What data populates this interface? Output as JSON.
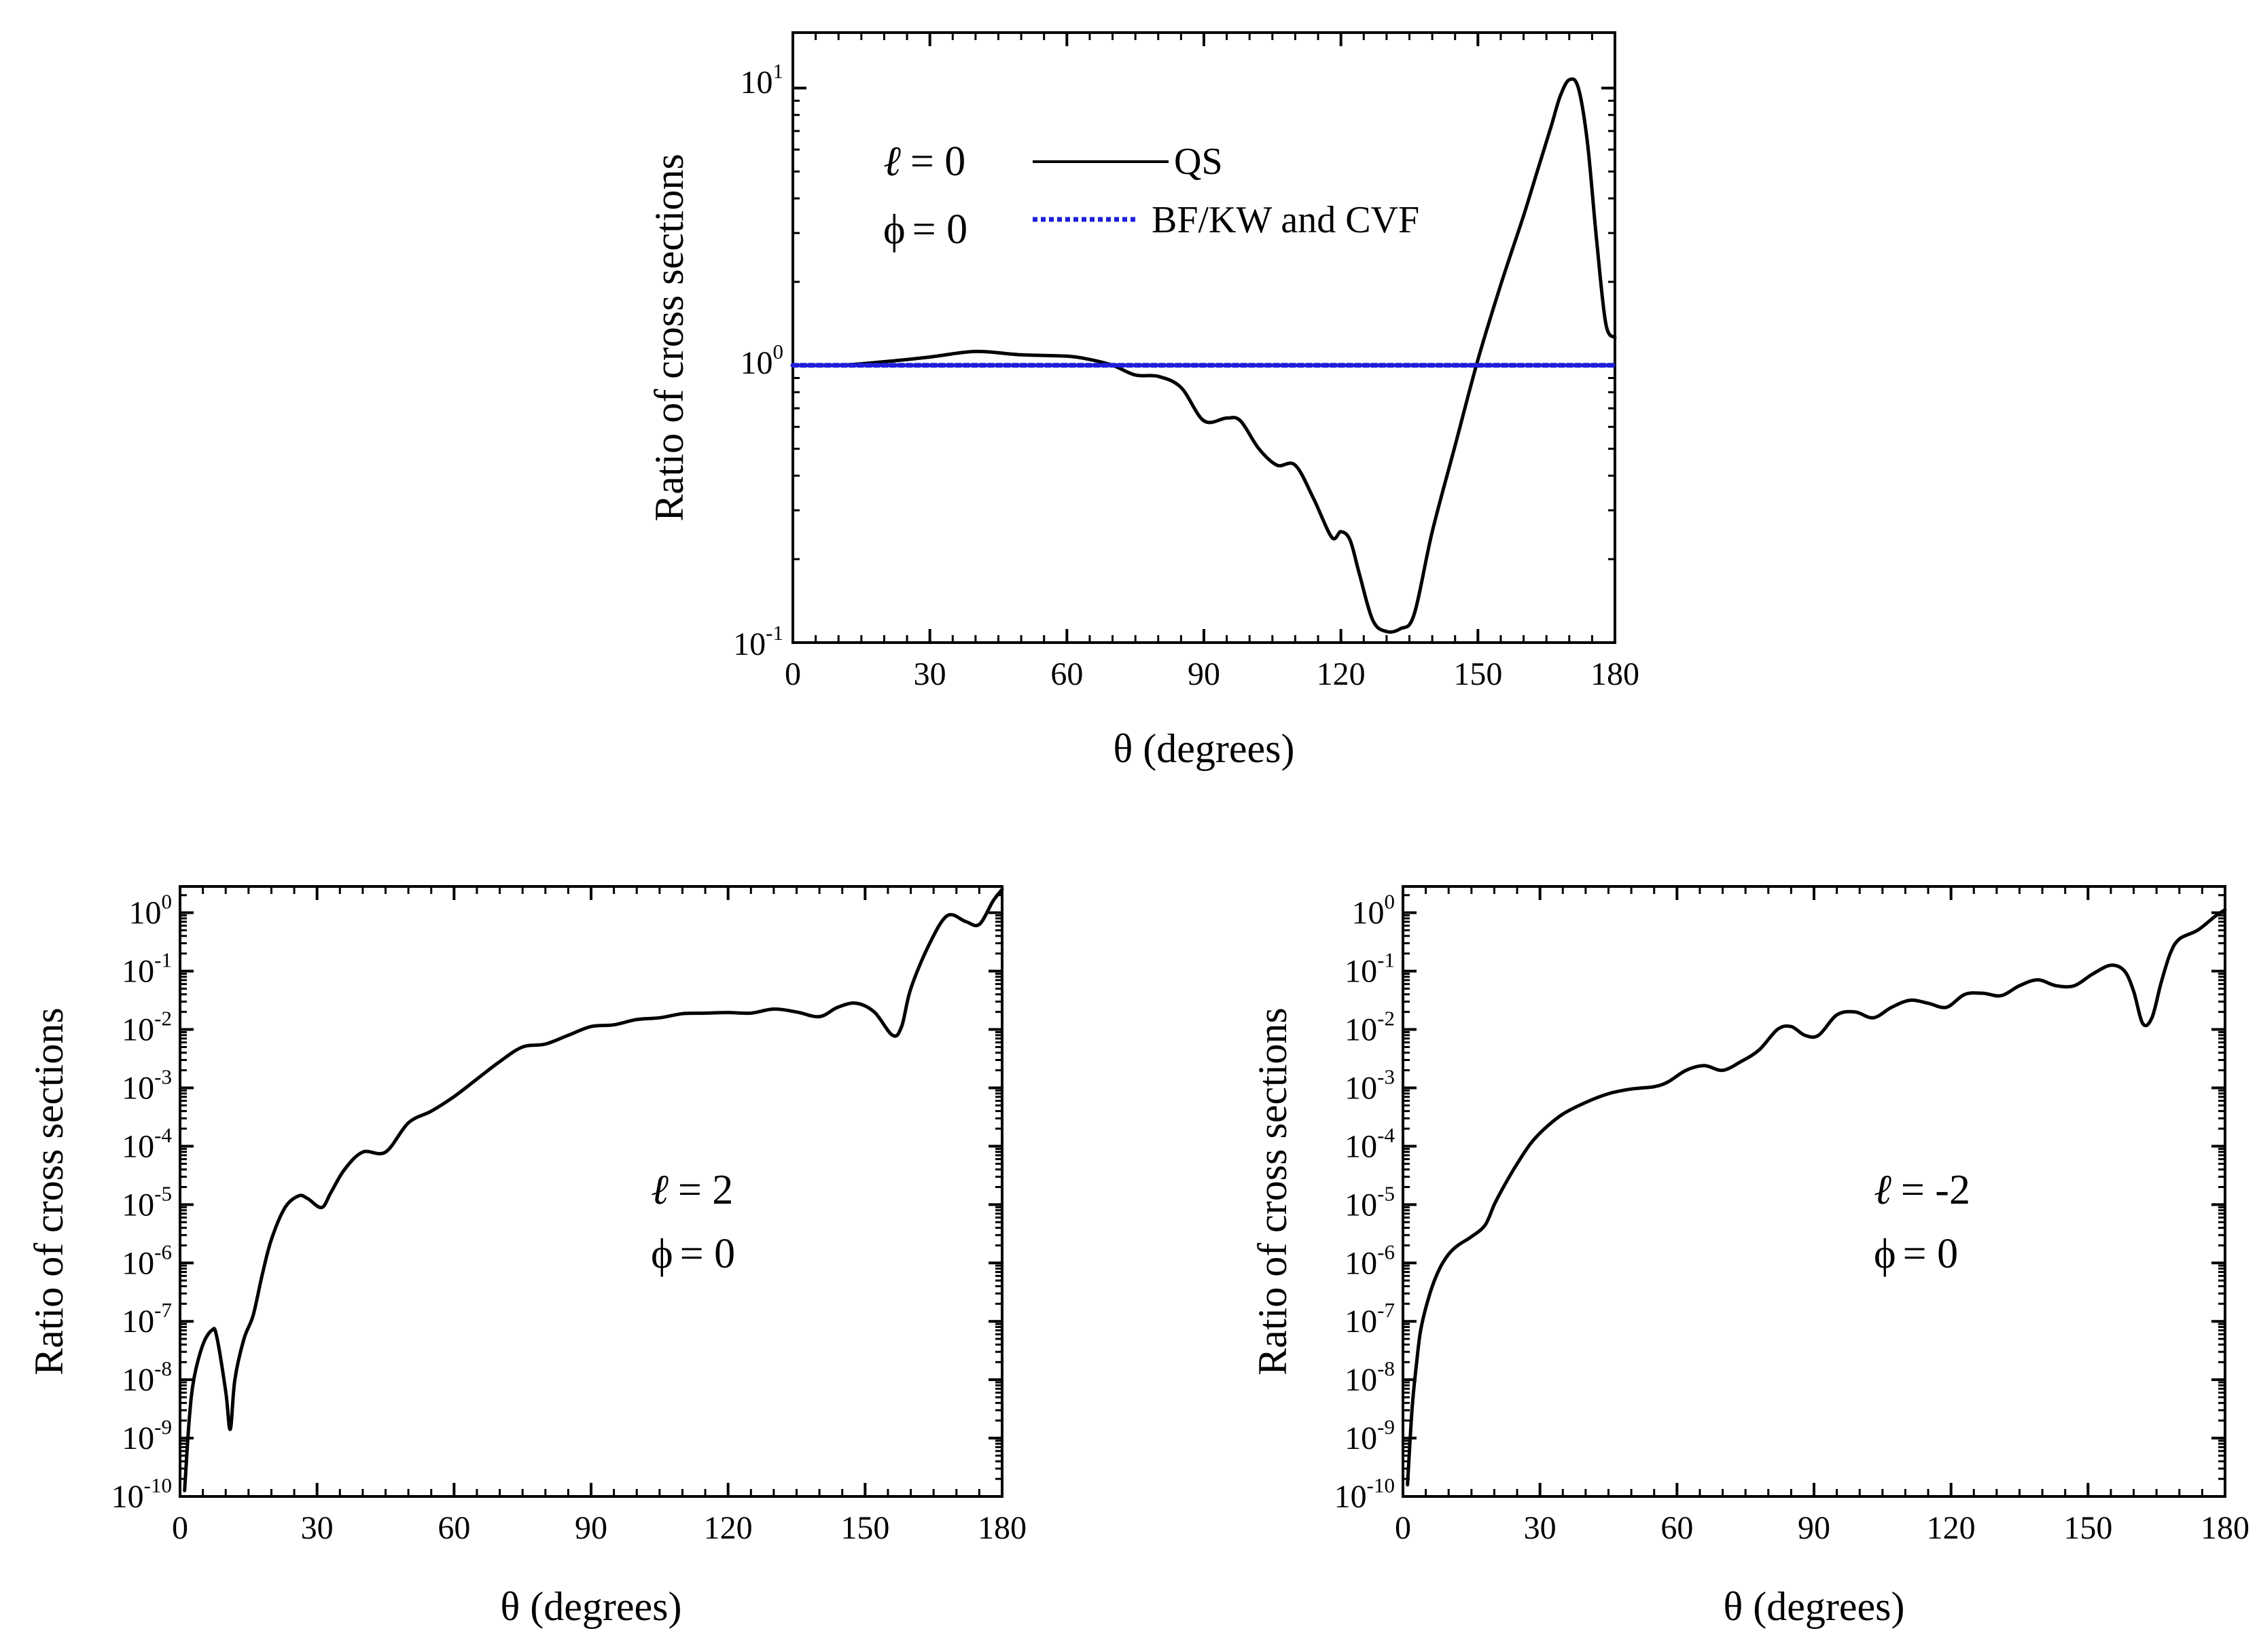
{
  "colors": {
    "qs_line": "#000000",
    "reference_line": "#1f1fd8",
    "axes": "#000000"
  },
  "chart_data": [
    {
      "type": "line",
      "id": "top",
      "xlabel": "θ (degrees)",
      "ylabel": "Ratio of cross sections",
      "xlim": [
        0,
        180
      ],
      "ylim_log10": [
        -1,
        1.2
      ],
      "yscale": "log",
      "x_ticks": [
        0,
        30,
        60,
        90,
        120,
        150,
        180
      ],
      "y_ticks": [
        {
          "base": "10",
          "exp": "1",
          "log": 1
        },
        {
          "base": "10",
          "exp": "0",
          "log": 0
        },
        {
          "base": "10",
          "exp": "-1",
          "log": -1
        }
      ],
      "annotations": [
        {
          "id": "ell",
          "symbol": "ℓ",
          "text": "= 0"
        },
        {
          "id": "phi",
          "symbol": "ϕ",
          "text": "= 0"
        }
      ],
      "legend": {
        "position": "top-left",
        "entries": [
          "QS",
          "BF/KW and CVF"
        ]
      },
      "series": [
        {
          "name": "QS",
          "style": "solid",
          "x": [
            0,
            10,
            20,
            30,
            40,
            50,
            60,
            65,
            70,
            75,
            80,
            85,
            90,
            95,
            98,
            102,
            106,
            110,
            114,
            118,
            120,
            122,
            124,
            127,
            130,
            133,
            136,
            140,
            145,
            150,
            155,
            160,
            163,
            166,
            168,
            170,
            172,
            174,
            176,
            178,
            180
          ],
          "log_y": [
            0,
            0.0,
            0.013,
            0.03,
            0.05,
            0.038,
            0.033,
            0.021,
            0.0,
            -0.035,
            -0.04,
            -0.08,
            -0.2,
            -0.19,
            -0.2,
            -0.3,
            -0.36,
            -0.36,
            -0.48,
            -0.62,
            -0.6,
            -0.63,
            -0.75,
            -0.92,
            -0.96,
            -0.95,
            -0.9,
            -0.6,
            -0.29,
            0.02,
            0.29,
            0.54,
            0.7,
            0.86,
            0.97,
            1.03,
            1.0,
            0.8,
            0.45,
            0.15,
            0.1
          ]
        },
        {
          "name": "BF/KW and CVF",
          "style": "dotted",
          "x": [
            0,
            180
          ],
          "log_y": [
            0,
            0
          ]
        }
      ]
    },
    {
      "type": "line",
      "id": "bottom-left",
      "xlabel": "θ (degrees)",
      "ylabel": "Ratio of cross sections",
      "xlim": [
        0,
        180
      ],
      "ylim_log10": [
        -10,
        0.45
      ],
      "yscale": "log",
      "x_ticks": [
        0,
        30,
        60,
        90,
        120,
        150,
        180
      ],
      "y_ticks": [
        {
          "base": "10",
          "exp": "0",
          "log": 0
        },
        {
          "base": "10",
          "exp": "-1",
          "log": -1
        },
        {
          "base": "10",
          "exp": "-2",
          "log": -2
        },
        {
          "base": "10",
          "exp": "-3",
          "log": -3
        },
        {
          "base": "10",
          "exp": "-4",
          "log": -4
        },
        {
          "base": "10",
          "exp": "-5",
          "log": -5
        },
        {
          "base": "10",
          "exp": "-6",
          "log": -6
        },
        {
          "base": "10",
          "exp": "-7",
          "log": -7
        },
        {
          "base": "10",
          "exp": "-8",
          "log": -8
        },
        {
          "base": "10",
          "exp": "-9",
          "log": -9
        },
        {
          "base": "10",
          "exp": "-10",
          "log": -10
        }
      ],
      "annotations": [
        {
          "id": "ell",
          "symbol": "ℓ",
          "text": "= 2"
        },
        {
          "id": "phi",
          "symbol": "ϕ",
          "text": "= 0"
        }
      ],
      "series": [
        {
          "name": "QS",
          "style": "solid",
          "x": [
            1,
            2,
            3,
            5,
            7,
            8,
            10,
            11,
            12,
            14,
            16,
            18,
            20,
            23,
            26,
            28,
            31,
            33,
            36,
            40,
            45,
            50,
            55,
            60,
            65,
            70,
            75,
            80,
            85,
            90,
            95,
            100,
            105,
            110,
            115,
            120,
            125,
            130,
            135,
            140,
            144,
            148,
            152,
            156,
            158,
            160,
            164,
            168,
            172,
            175,
            178,
            180
          ],
          "log_y": [
            -9.9,
            -8.7,
            -8.0,
            -7.4,
            -7.15,
            -7.25,
            -8.2,
            -8.85,
            -8.0,
            -7.3,
            -6.9,
            -6.2,
            -5.6,
            -5.05,
            -4.85,
            -4.9,
            -5.05,
            -4.8,
            -4.4,
            -4.1,
            -4.1,
            -3.6,
            -3.4,
            -3.15,
            -2.85,
            -2.55,
            -2.3,
            -2.25,
            -2.1,
            -1.95,
            -1.92,
            -1.83,
            -1.8,
            -1.73,
            -1.72,
            -1.71,
            -1.72,
            -1.65,
            -1.7,
            -1.78,
            -1.62,
            -1.55,
            -1.7,
            -2.1,
            -1.95,
            -1.3,
            -0.55,
            -0.05,
            -0.15,
            -0.2,
            0.2,
            0.4
          ]
        }
      ]
    },
    {
      "type": "line",
      "id": "bottom-right",
      "xlabel": "θ (degrees)",
      "ylabel": "Ratio of cross sections",
      "xlim": [
        0,
        180
      ],
      "ylim_log10": [
        -10,
        0.45
      ],
      "yscale": "log",
      "x_ticks": [
        0,
        30,
        60,
        90,
        120,
        150,
        180
      ],
      "y_ticks": [
        {
          "base": "10",
          "exp": "0",
          "log": 0
        },
        {
          "base": "10",
          "exp": "-1",
          "log": -1
        },
        {
          "base": "10",
          "exp": "-2",
          "log": -2
        },
        {
          "base": "10",
          "exp": "-3",
          "log": -3
        },
        {
          "base": "10",
          "exp": "-4",
          "log": -4
        },
        {
          "base": "10",
          "exp": "-5",
          "log": -5
        },
        {
          "base": "10",
          "exp": "-6",
          "log": -6
        },
        {
          "base": "10",
          "exp": "-7",
          "log": -7
        },
        {
          "base": "10",
          "exp": "-8",
          "log": -8
        },
        {
          "base": "10",
          "exp": "-9",
          "log": -9
        },
        {
          "base": "10",
          "exp": "-10",
          "log": -10
        }
      ],
      "annotations": [
        {
          "id": "ell",
          "symbol": "ℓ",
          "text": "= -2"
        },
        {
          "id": "phi",
          "symbol": "ϕ",
          "text": "= 0"
        }
      ],
      "series": [
        {
          "name": "QS",
          "style": "solid",
          "x": [
            1,
            2,
            3,
            4,
            6,
            8,
            10,
            12,
            15,
            18,
            20,
            22,
            25,
            28,
            31,
            35,
            40,
            45,
            50,
            55,
            58,
            62,
            66,
            70,
            74,
            78,
            82,
            85,
            88,
            91,
            95,
            99,
            103,
            107,
            111,
            115,
            119,
            123,
            127,
            131,
            135,
            139,
            143,
            147,
            151,
            155,
            158,
            160,
            162,
            164,
            166,
            168,
            170,
            174,
            178,
            180
          ],
          "log_y": [
            -9.8,
            -8.5,
            -7.7,
            -7.1,
            -6.5,
            -6.1,
            -5.85,
            -5.7,
            -5.55,
            -5.35,
            -5.0,
            -4.7,
            -4.3,
            -3.95,
            -3.7,
            -3.45,
            -3.25,
            -3.1,
            -3.02,
            -2.98,
            -2.9,
            -2.7,
            -2.62,
            -2.7,
            -2.55,
            -2.35,
            -2.0,
            -1.95,
            -2.1,
            -2.1,
            -1.75,
            -1.7,
            -1.8,
            -1.62,
            -1.5,
            -1.55,
            -1.62,
            -1.4,
            -1.38,
            -1.42,
            -1.25,
            -1.15,
            -1.25,
            -1.25,
            -1.05,
            -0.9,
            -1.0,
            -1.35,
            -1.9,
            -1.8,
            -1.2,
            -0.7,
            -0.45,
            -0.3,
            -0.05,
            0.05
          ]
        }
      ]
    }
  ]
}
